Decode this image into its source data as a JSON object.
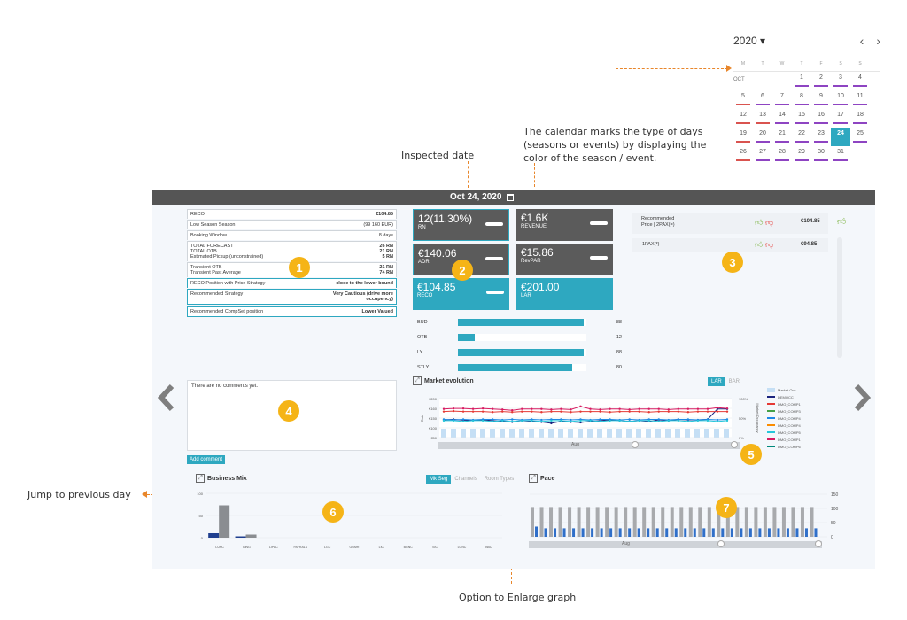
{
  "callouts": {
    "inspected_date": "Inspected date",
    "calendar_note": "The calendar marks the type of days (seasons or events) by displaying the color of the season / event.",
    "jump_previous": "Jump to previous day",
    "enlarge_option": "Option to Enlarge graph"
  },
  "badges": [
    "1",
    "2",
    "3",
    "4",
    "5",
    "6",
    "7"
  ],
  "calendar": {
    "year": "2020 ▾",
    "prev": "‹",
    "next": "›",
    "weekdays": [
      "M",
      "T",
      "W",
      "T",
      "F",
      "S",
      "S"
    ],
    "month": "OCT",
    "selected_day": "24",
    "rows": [
      [
        "",
        "",
        "",
        "1",
        "2",
        "3",
        "4"
      ],
      [
        "5",
        "6",
        "7",
        "8",
        "9",
        "10",
        "11"
      ],
      [
        "12",
        "13",
        "14",
        "15",
        "16",
        "17",
        "18"
      ],
      [
        "19",
        "20",
        "21",
        "22",
        "23",
        "24",
        "25"
      ],
      [
        "26",
        "27",
        "28",
        "29",
        "30",
        "31",
        ""
      ]
    ],
    "colors": {
      "season": "#8e44c2",
      "event": "#d9534f"
    }
  },
  "topbar": {
    "date": "Oct 24, 2020",
    "calendar_icon": "calendar-icon"
  },
  "info_panel": {
    "reco_label": "RECO",
    "reco_value": "€104.85",
    "season_label": "Low Season Season",
    "season_value": "(99 160 EUR)",
    "window_label": "Booking Window",
    "window_value": "8 days",
    "forecast_label": "TOTAL FORECAST",
    "forecast_value": "26 RN",
    "otb_label": "TOTAL OTB",
    "otb_value": "21 RN",
    "pickup_label": "Estimated Pickup (unconstrained)",
    "pickup_value": "5 RN",
    "tr_otb_label": "Transient OTB",
    "tr_otb_value": "21 RN",
    "tr_past_label": "Transient Past Average",
    "tr_past_value": "74 RN",
    "position_label": "RECO Position with Price Strategy",
    "position_value": "close to the lower bound",
    "strategy_label": "Recommended Strategy",
    "strategy_value_1": "Very Cautious (drive more",
    "strategy_value_2": "occupency)",
    "compset_label": "Recommended CompSet position",
    "compset_value": "Lower Valued"
  },
  "kpi_tiles": [
    {
      "big": "12(11.30%)",
      "small": "RN"
    },
    {
      "big": "€1.6K",
      "small": "REVENUE"
    },
    {
      "big": "€140.06",
      "small": "ADR"
    },
    {
      "big": "€15.86",
      "small": "RevPAR"
    },
    {
      "big": "€104.85",
      "small": "RECO"
    },
    {
      "big": "€201.00",
      "small": "LAR"
    }
  ],
  "hbars": [
    {
      "label": "BUD",
      "value": 88
    },
    {
      "label": "OTB",
      "value": 12
    },
    {
      "label": "LY",
      "value": 88
    },
    {
      "label": "STLY",
      "value": 80
    }
  ],
  "reco_price": {
    "label_1": "Recommended",
    "label_2": "Price | 2PAX(=)",
    "value": "€104.85",
    "pax_label": "| 1PAX(*)",
    "pax_value": "€94.85"
  },
  "comments": {
    "empty": "There are no comments yet.",
    "add_button": "Add comment"
  },
  "market": {
    "title": "Market evolution",
    "tab_lar": "LAR",
    "tab_bar": "BAR",
    "y_ticks": [
      "€200",
      "€160",
      "€150",
      "€100",
      "€50"
    ],
    "y2_ticks": [
      "100%",
      "50%",
      "0%"
    ],
    "ylabel": "Rate",
    "y2label": "Market Occupancy",
    "slider_label": "Aug",
    "legend": [
      "Market Occ",
      "DEMOCC",
      "DMO_COMP1",
      "DMO_COMP3",
      "DMO_COMP4",
      "DMO_COMP4",
      "DMO_COMP5",
      "DMO_COMP1",
      "DMO_COMP6"
    ],
    "legend_colors": [
      "#c5dff5",
      "#1a237e",
      "#e53935",
      "#43a047",
      "#1e88e5",
      "#fb8c00",
      "#26c6da",
      "#d81b60",
      "#00897b"
    ]
  },
  "business_mix": {
    "title": "Business Mix",
    "tab_on": "Mk Seg",
    "tab_2": "Channels",
    "tab_3": "Room Types",
    "y_ticks": [
      "100",
      "50",
      "0"
    ],
    "categories": [
      "LUNC",
      "BING",
      "LIPAC",
      "PAYRALS",
      "LGC",
      "GGMR",
      "LIC",
      "BGNC",
      "SIC",
      "LGNC",
      "BBC"
    ]
  },
  "pace": {
    "title": "Pace",
    "y_ticks": [
      "150",
      "100",
      "50",
      "0"
    ],
    "slider_label": "Aug"
  },
  "chart_data": [
    {
      "type": "bar",
      "title": "Business Mix",
      "categories": [
        "LUNC",
        "BING",
        "LIPAC",
        "PAYRALS",
        "LGC",
        "GGMR",
        "LIC",
        "BGNC",
        "SIC",
        "LGNC",
        "BBC"
      ],
      "series": [
        {
          "values": [
            10,
            3,
            0,
            0,
            0,
            0,
            0,
            0,
            0,
            0,
            0
          ]
        },
        {
          "values": [
            73,
            7,
            0,
            0,
            0,
            0,
            0,
            0,
            0,
            0,
            0
          ]
        }
      ],
      "ylim": [
        0,
        100
      ]
    },
    {
      "type": "bar",
      "title": "Pace",
      "series": [
        {
          "values": [
            105,
            105,
            105,
            105,
            105,
            105,
            105,
            105,
            105,
            105,
            105,
            105,
            105,
            105,
            105,
            105,
            105,
            105,
            105,
            105,
            105,
            105,
            105,
            105,
            105,
            105,
            105,
            105,
            105,
            105,
            105
          ]
        },
        {
          "values": [
            36,
            30,
            30,
            30,
            30,
            30,
            30,
            30,
            30,
            30,
            30,
            30,
            30,
            30,
            30,
            30,
            30,
            30,
            30,
            30,
            30,
            30,
            30,
            30,
            30,
            30,
            30,
            30,
            30,
            30,
            30
          ]
        }
      ],
      "ylim": [
        0,
        150
      ]
    },
    {
      "type": "line",
      "title": "Market evolution",
      "ylim": [
        50,
        200
      ],
      "series": [
        {
          "values": [
            118,
            120,
            117,
            116,
            118,
            115,
            112,
            110,
            115,
            112,
            110,
            105,
            112,
            110,
            108,
            112,
            115,
            118,
            115,
            112,
            115,
            112,
            118,
            115,
            120,
            118,
            118,
            120,
            160,
            160
          ]
        },
        {
          "values": [
            160,
            162,
            162,
            160,
            162,
            160,
            158,
            155,
            160,
            160,
            160,
            158,
            160,
            158,
            170,
            160,
            158,
            160,
            160,
            158,
            160,
            160,
            160,
            158,
            160,
            160,
            160,
            160,
            165,
            162
          ]
        },
        {
          "values": [
            150,
            152,
            150,
            150,
            150,
            148,
            150,
            148,
            150,
            150,
            148,
            150,
            150,
            148,
            150,
            150,
            150,
            148,
            150,
            150,
            150,
            148,
            150,
            150,
            150,
            148,
            150,
            150,
            150,
            150
          ]
        },
        {
          "values": [
            120,
            118,
            120,
            118,
            120,
            120,
            118,
            120,
            118,
            120,
            118,
            120,
            120,
            118,
            120,
            118,
            120,
            120,
            118,
            120,
            118,
            120,
            120,
            118,
            120,
            120,
            118,
            120,
            118,
            120
          ]
        },
        {
          "values": [
            115,
            115,
            112,
            115,
            115,
            112,
            115,
            112,
            115,
            115,
            112,
            115,
            115,
            112,
            115,
            115,
            112,
            115,
            115,
            112,
            115,
            115,
            112,
            115,
            115,
            112,
            115,
            115,
            112,
            115
          ]
        }
      ]
    }
  ]
}
